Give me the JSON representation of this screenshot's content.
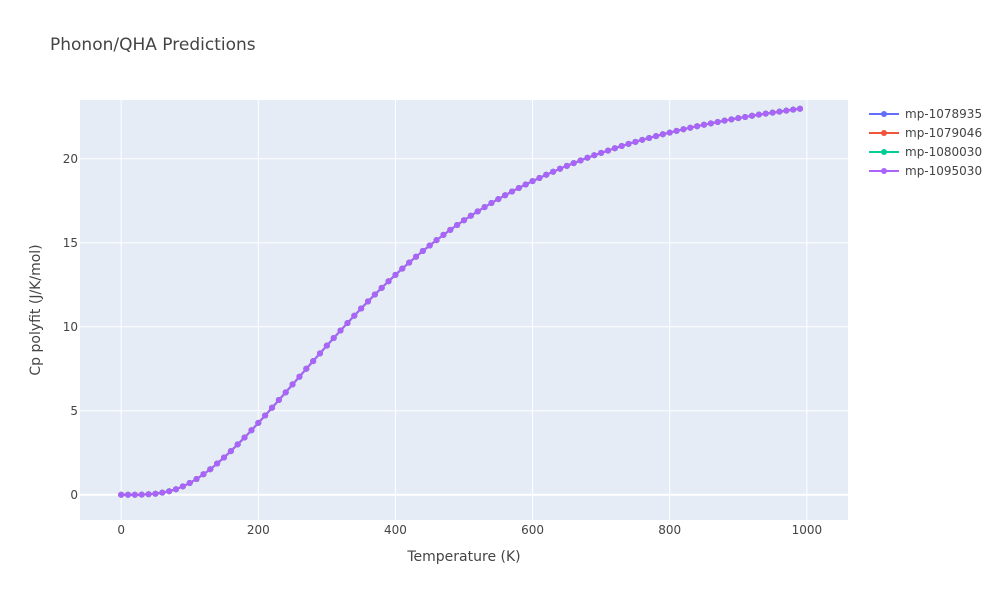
{
  "colors": {
    "plot_bg": "#E5ECF6",
    "grid": "#FFFFFF",
    "text": "#444444"
  },
  "chart_data": {
    "type": "line",
    "title": "Phonon/QHA Predictions",
    "xlabel": "Temperature (K)",
    "ylabel": "Cp polyfit (J/K/mol)",
    "xlim": [
      -60,
      1060
    ],
    "ylim": [
      -1.5,
      23.5
    ],
    "xticks": [
      0,
      200,
      400,
      600,
      800,
      1000
    ],
    "yticks": [
      0,
      5,
      10,
      15,
      20
    ],
    "grid": true,
    "legend_position": "top-right",
    "x": [
      0,
      10,
      20,
      30,
      40,
      50,
      60,
      70,
      80,
      90,
      100,
      110,
      120,
      130,
      140,
      150,
      160,
      170,
      180,
      190,
      200,
      210,
      220,
      230,
      240,
      250,
      260,
      270,
      280,
      290,
      300,
      310,
      320,
      330,
      340,
      350,
      360,
      370,
      380,
      390,
      400,
      410,
      420,
      430,
      440,
      450,
      460,
      470,
      480,
      490,
      500,
      510,
      520,
      530,
      540,
      550,
      560,
      570,
      580,
      590,
      600,
      610,
      620,
      630,
      640,
      650,
      660,
      670,
      680,
      690,
      700,
      710,
      720,
      730,
      740,
      750,
      760,
      770,
      780,
      790,
      800,
      810,
      820,
      830,
      840,
      850,
      860,
      870,
      880,
      890,
      900,
      910,
      920,
      930,
      940,
      950,
      960,
      970,
      980,
      990
    ],
    "y": [
      0.0,
      0.0,
      0.0,
      0.01,
      0.03,
      0.06,
      0.13,
      0.21,
      0.33,
      0.5,
      0.7,
      0.94,
      1.22,
      1.52,
      1.86,
      2.22,
      2.6,
      3.0,
      3.41,
      3.84,
      4.28,
      4.72,
      5.18,
      5.64,
      6.1,
      6.57,
      7.03,
      7.5,
      7.96,
      8.42,
      8.88,
      9.33,
      9.78,
      10.22,
      10.66,
      11.09,
      11.51,
      11.92,
      12.32,
      12.71,
      13.09,
      13.46,
      13.82,
      14.17,
      14.51,
      14.84,
      15.16,
      15.47,
      15.77,
      16.06,
      16.34,
      16.61,
      16.87,
      17.12,
      17.37,
      17.6,
      17.83,
      18.05,
      18.26,
      18.47,
      18.67,
      18.86,
      19.05,
      19.23,
      19.41,
      19.58,
      19.74,
      19.9,
      20.06,
      20.21,
      20.35,
      20.49,
      20.63,
      20.76,
      20.89,
      21.01,
      21.13,
      21.24,
      21.35,
      21.46,
      21.56,
      21.66,
      21.76,
      21.85,
      21.94,
      22.03,
      22.11,
      22.19,
      22.27,
      22.35,
      22.42,
      22.49,
      22.56,
      22.63,
      22.69,
      22.75,
      22.81,
      22.87,
      22.93,
      22.98
    ],
    "series": [
      {
        "name": "mp-1078935",
        "color": "#636EFA"
      },
      {
        "name": "mp-1079046",
        "color": "#EF553B"
      },
      {
        "name": "mp-1080030",
        "color": "#00CC96"
      },
      {
        "name": "mp-1095030",
        "color": "#AB63FA"
      }
    ]
  }
}
